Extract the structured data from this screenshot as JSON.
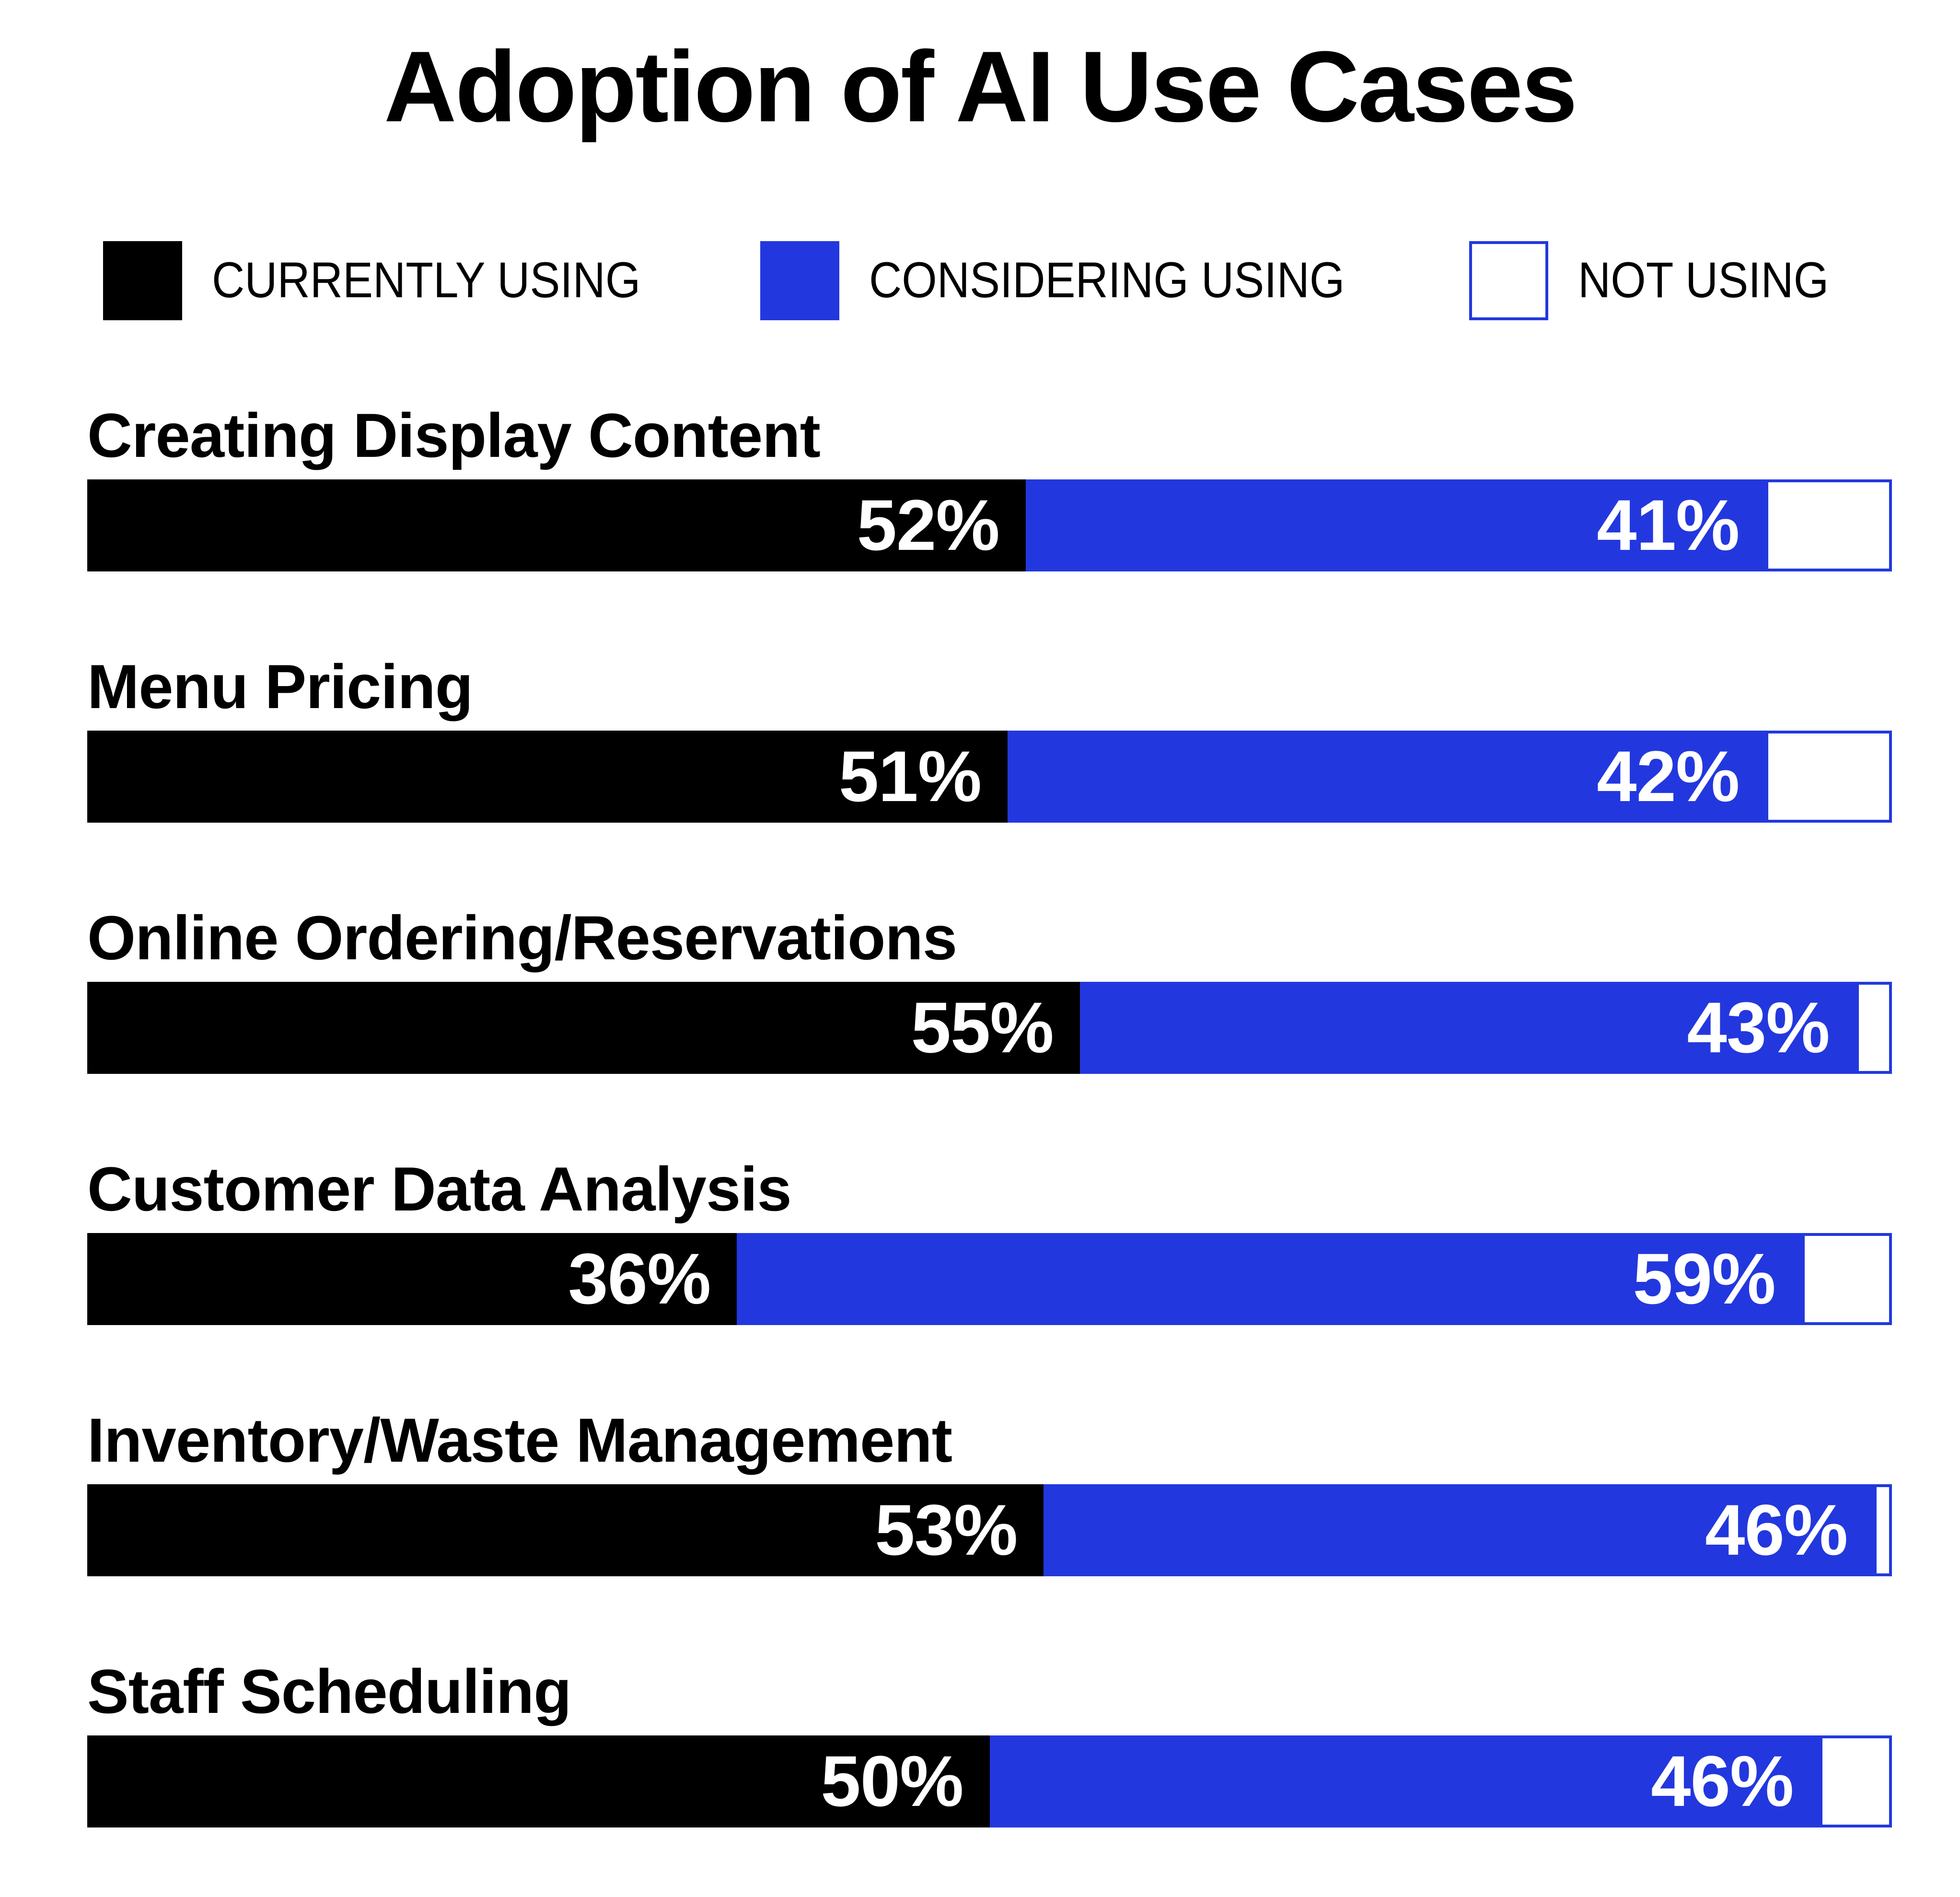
{
  "title": "Adoption of AI Use Cases",
  "legend": {
    "items": [
      {
        "label": "CURRENTLY USING"
      },
      {
        "label": "CONSIDERING USING"
      },
      {
        "label": "NOT USING"
      }
    ]
  },
  "colors": {
    "background": "#FFFFFF",
    "text": "#000000",
    "currently_using": "#000000",
    "considering_using": "#2238DE",
    "not_using_fill": "#FFFFFF",
    "not_using_border": "#2238DE",
    "value_label": "#FFFFFF"
  },
  "chart_data": {
    "type": "bar",
    "orientation": "horizontal_stacked",
    "unit": "%",
    "xlim": [
      0,
      100
    ],
    "grid": false,
    "legend_position": "top",
    "value_label_format": "{value}%",
    "title": "Adoption of AI Use Cases",
    "categories": [
      "Creating Display Content",
      "Menu Pricing",
      "Online Ordering/Reservations",
      "Customer Data Analysis",
      "Inventory/Waste Management",
      "Staff Scheduling"
    ],
    "series": [
      {
        "name": "Currently Using",
        "values": [
          52,
          51,
          55,
          36,
          53,
          50
        ]
      },
      {
        "name": "Considering Using",
        "values": [
          41,
          42,
          43,
          59,
          46,
          46
        ]
      },
      {
        "name": "Not Using",
        "values": [
          7,
          7,
          2,
          5,
          1,
          4
        ]
      }
    ]
  }
}
